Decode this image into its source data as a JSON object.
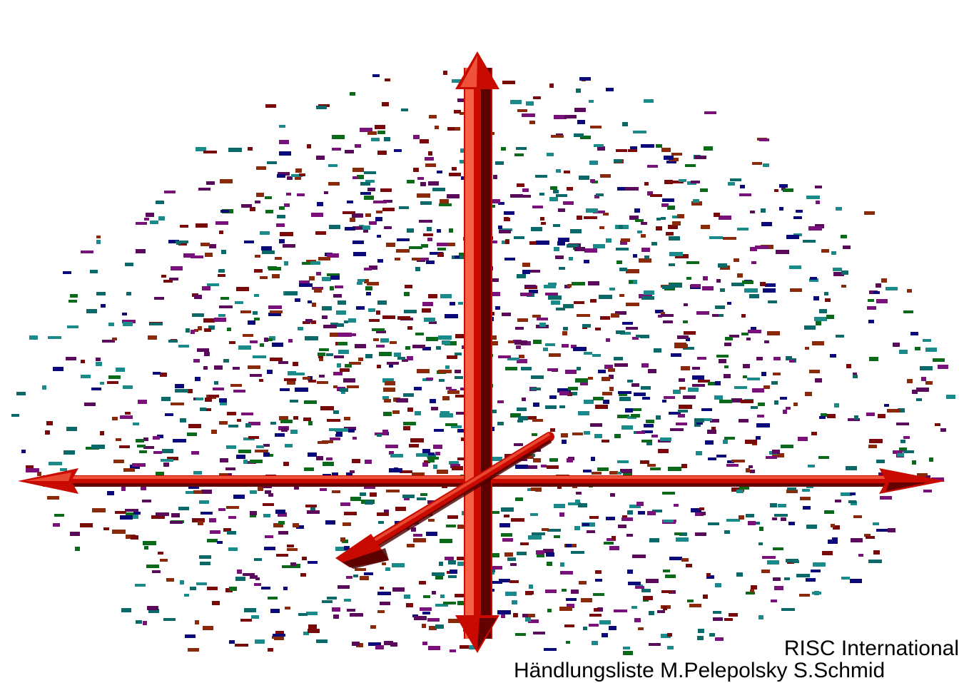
{
  "caption": {
    "line1": "RISC International",
    "line2": "Händlungsliste M.Pelepolsky S.Schmid"
  },
  "scatter_palette": [
    "#7a0a0a",
    "#0a6a6a",
    "#7a107a",
    "#0a0a7a",
    "#0a6a1a",
    "#8a2a0a",
    "#1a8a8a",
    "#5a0a5a"
  ],
  "arrow_colors": {
    "main": "#c80a00",
    "highlight": "#ff7050",
    "shadow": "#4a0000"
  },
  "icons": [
    "axis-arrow-up-icon",
    "axis-arrow-down-icon",
    "axis-arrow-left-icon",
    "axis-arrow-right-icon",
    "axis-arrow-diagonal-icon"
  ]
}
